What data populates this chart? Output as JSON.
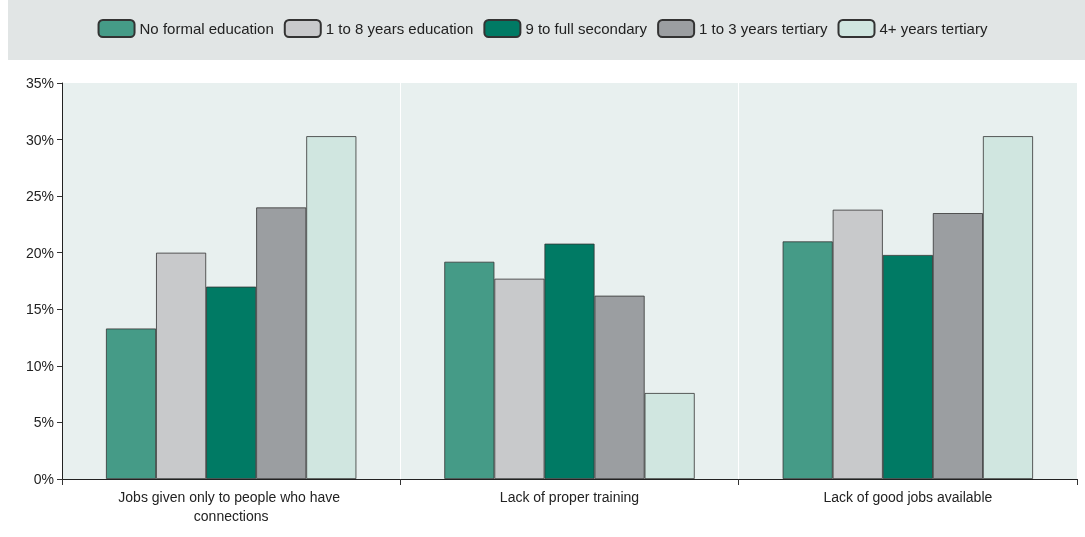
{
  "chart_data": {
    "type": "bar",
    "categories": [
      "Jobs given only to people who have connections",
      "Lack of proper training",
      "Lack of good jobs available"
    ],
    "series": [
      {
        "name": "No formal education",
        "color": "#459b87",
        "values": [
          13.3,
          19.2,
          21.0
        ]
      },
      {
        "name": "1 to 8 years education",
        "color": "#c8c9cb",
        "values": [
          20.0,
          17.7,
          23.8
        ]
      },
      {
        "name": "9 to full secondary",
        "color": "#007a64",
        "values": [
          17.0,
          20.8,
          19.8
        ]
      },
      {
        "name": "1 to 3 years tertiary",
        "color": "#9b9ea1",
        "values": [
          24.0,
          16.2,
          23.5
        ]
      },
      {
        "name": "4+ years tertiary",
        "color": "#d0e6e0",
        "values": [
          30.3,
          7.6,
          30.3
        ]
      }
    ],
    "ylim": [
      0,
      35
    ],
    "yticks": [
      {
        "value": 0,
        "label": "0%"
      },
      {
        "value": 5,
        "label": "5%"
      },
      {
        "value": 10,
        "label": "10%"
      },
      {
        "value": 15,
        "label": "15%"
      },
      {
        "value": 20,
        "label": "20%"
      },
      {
        "value": 25,
        "label": "25%"
      },
      {
        "value": 30,
        "label": "30%"
      },
      {
        "value": 35,
        "label": "35%"
      }
    ],
    "grid": "x",
    "legend": "top"
  }
}
